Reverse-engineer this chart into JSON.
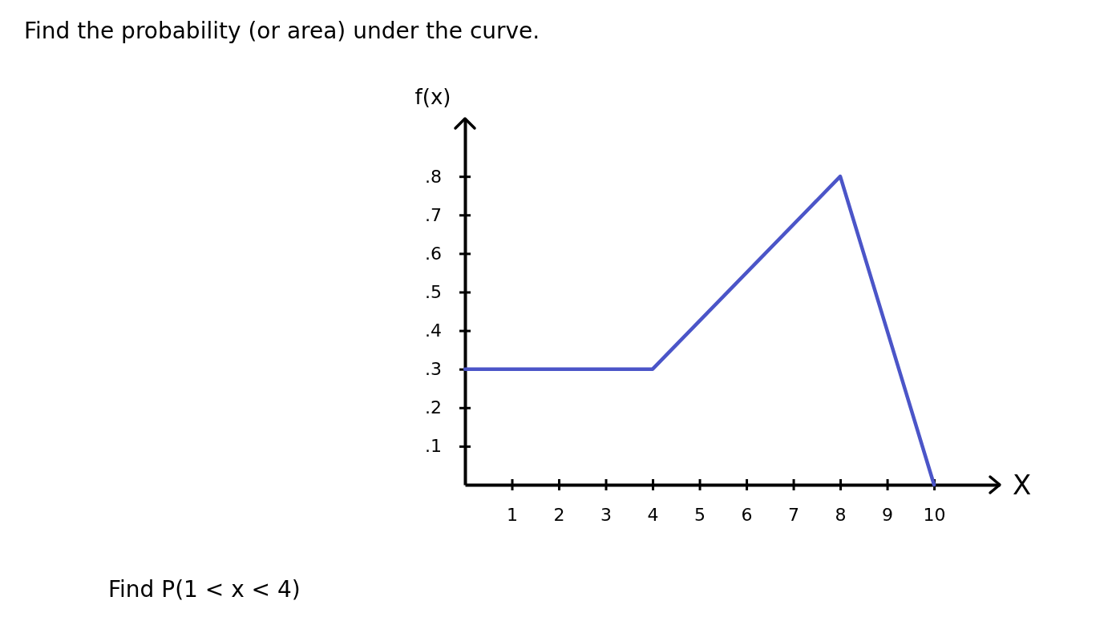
{
  "chart_data": {
    "type": "line",
    "title": "Find the probability (or area) under the curve.",
    "xlabel": "X",
    "ylabel": "f(x)",
    "annotations": [
      "Find P(1 < x < 4)"
    ],
    "x": [
      0,
      4,
      8,
      10
    ],
    "series": [
      {
        "color": "#4b55c8",
        "values": [
          0.3,
          0.3,
          0.8,
          0
        ]
      }
    ],
    "xlim": [
      0,
      11.4
    ],
    "xticks": [
      1,
      2,
      3,
      4,
      5,
      6,
      7,
      8,
      9,
      10
    ],
    "ylim": [
      0,
      0.95
    ],
    "yticks": [
      {
        "value": 0.1,
        "label": ".1"
      },
      {
        "value": 0.2,
        "label": ".2"
      },
      {
        "value": 0.3,
        "label": ".3"
      },
      {
        "value": 0.4,
        "label": ".4"
      },
      {
        "value": 0.5,
        "label": ".5"
      },
      {
        "value": 0.6,
        "label": ".6"
      },
      {
        "value": 0.7,
        "label": ".7"
      },
      {
        "value": 0.8,
        "label": ".8"
      }
    ],
    "grid": false
  }
}
